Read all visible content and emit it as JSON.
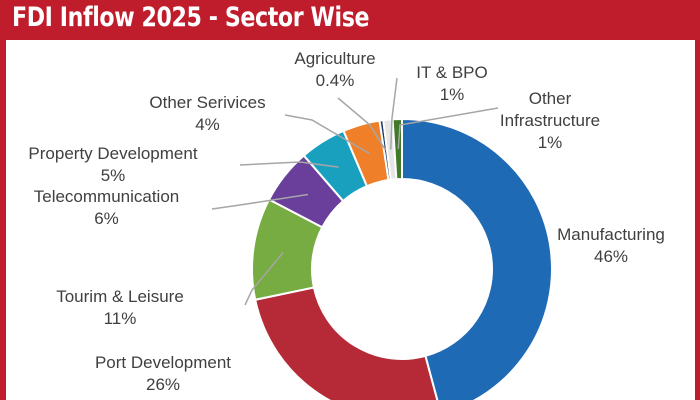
{
  "header": {
    "title": "FDI Inflow 2025 - Sector Wise"
  },
  "colors": {
    "frame": "#c01d2c",
    "text": "#404040",
    "leader": "#a6a6a6"
  },
  "labels": [
    {
      "name": "Manufacturing",
      "value": "46%"
    },
    {
      "name": "Port Development",
      "value": "26%"
    },
    {
      "name": "Tourim & Leisure",
      "value": "11%"
    },
    {
      "name": "Telecommunication",
      "value": "6%"
    },
    {
      "name": "Property Development",
      "value": "5%"
    },
    {
      "name": "Other Serivices",
      "value": "4%"
    },
    {
      "name": "Agriculture",
      "value": "0.4%"
    },
    {
      "name": "IT & BPO",
      "value": "1%"
    },
    {
      "name": "Other Infrastructure",
      "value": "1%"
    }
  ],
  "chart_data": {
    "type": "pie",
    "subtype": "donut",
    "title": "FDI Inflow 2025 - Sector Wise",
    "categories": [
      "Manufacturing",
      "Port Development",
      "Tourim & Leisure",
      "Telecommunication",
      "Property Development",
      "Other Serivices",
      "Agriculture",
      "IT & BPO",
      "Other Infrastructure"
    ],
    "values": [
      46,
      26,
      11,
      6,
      5,
      4,
      0.4,
      1,
      1
    ],
    "unit": "%",
    "colors": [
      "#1f6ab5",
      "#b52a36",
      "#76ac42",
      "#6a3f9b",
      "#1aa0bf",
      "#f07f2a",
      "#1d3a66",
      "#e6e6e6",
      "#3e7a2a"
    ],
    "start_angle_deg": 0,
    "direction": "clockwise",
    "legend": "none",
    "data_labels": "category and percentage with leader lines"
  }
}
